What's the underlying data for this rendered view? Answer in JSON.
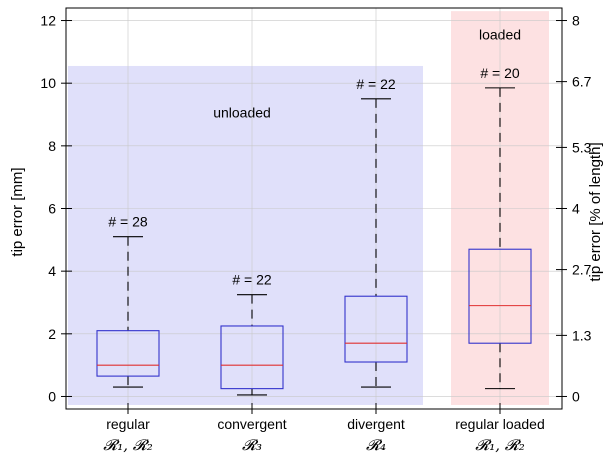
{
  "chart_data": {
    "type": "box",
    "title": "",
    "ylabel_left": "tip error [mm]",
    "ylabel_right": "tip error [% of length]",
    "ylim": [
      -0.4,
      12.4
    ],
    "yticks_left": [
      0,
      2,
      4,
      6,
      8,
      10,
      12
    ],
    "yticks_right": [
      {
        "label": "0",
        "mm": 0
      },
      {
        "label": "1.3",
        "mm": 1.95
      },
      {
        "label": "2.7",
        "mm": 4.05
      },
      {
        "label": "4",
        "mm": 6.0
      },
      {
        "label": "5.3",
        "mm": 7.95
      },
      {
        "label": "6.7",
        "mm": 10.05
      },
      {
        "label": "8",
        "mm": 12.0
      }
    ],
    "grid": true,
    "categories": [
      {
        "label": "regular",
        "sublabel": "𝓡₁, 𝓡₂"
      },
      {
        "label": "convergent",
        "sublabel": "𝓡₃"
      },
      {
        "label": "divergent",
        "sublabel": "𝓡₄"
      },
      {
        "label": "regular loaded",
        "sublabel": "𝓡₁, 𝓡₂"
      }
    ],
    "boxes": [
      {
        "whisker_low": 0.3,
        "q1": 0.65,
        "median": 1.0,
        "q3": 2.1,
        "whisker_high": 5.1,
        "count_label": "# = 28"
      },
      {
        "whisker_low": 0.05,
        "q1": 0.25,
        "median": 1.0,
        "q3": 2.25,
        "whisker_high": 3.25,
        "count_label": "# = 22"
      },
      {
        "whisker_low": 0.3,
        "q1": 1.1,
        "median": 1.7,
        "q3": 3.2,
        "whisker_high": 9.5,
        "count_label": "# = 22"
      },
      {
        "whisker_low": 0.25,
        "q1": 1.7,
        "median": 2.9,
        "q3": 4.7,
        "whisker_high": 9.85,
        "count_label": "# = 20"
      }
    ],
    "regions": [
      {
        "label": "unloaded",
        "from_category": 0,
        "to_category": 2,
        "y_top": 10.55,
        "color": "#e0e0fa"
      },
      {
        "label": "loaded",
        "from_category": 3,
        "to_category": 3,
        "y_top": 12.3,
        "color": "#fde1e2"
      }
    ],
    "colors": {
      "box": "#3333cc",
      "median": "#e03030",
      "whisker": "#000000"
    }
  }
}
